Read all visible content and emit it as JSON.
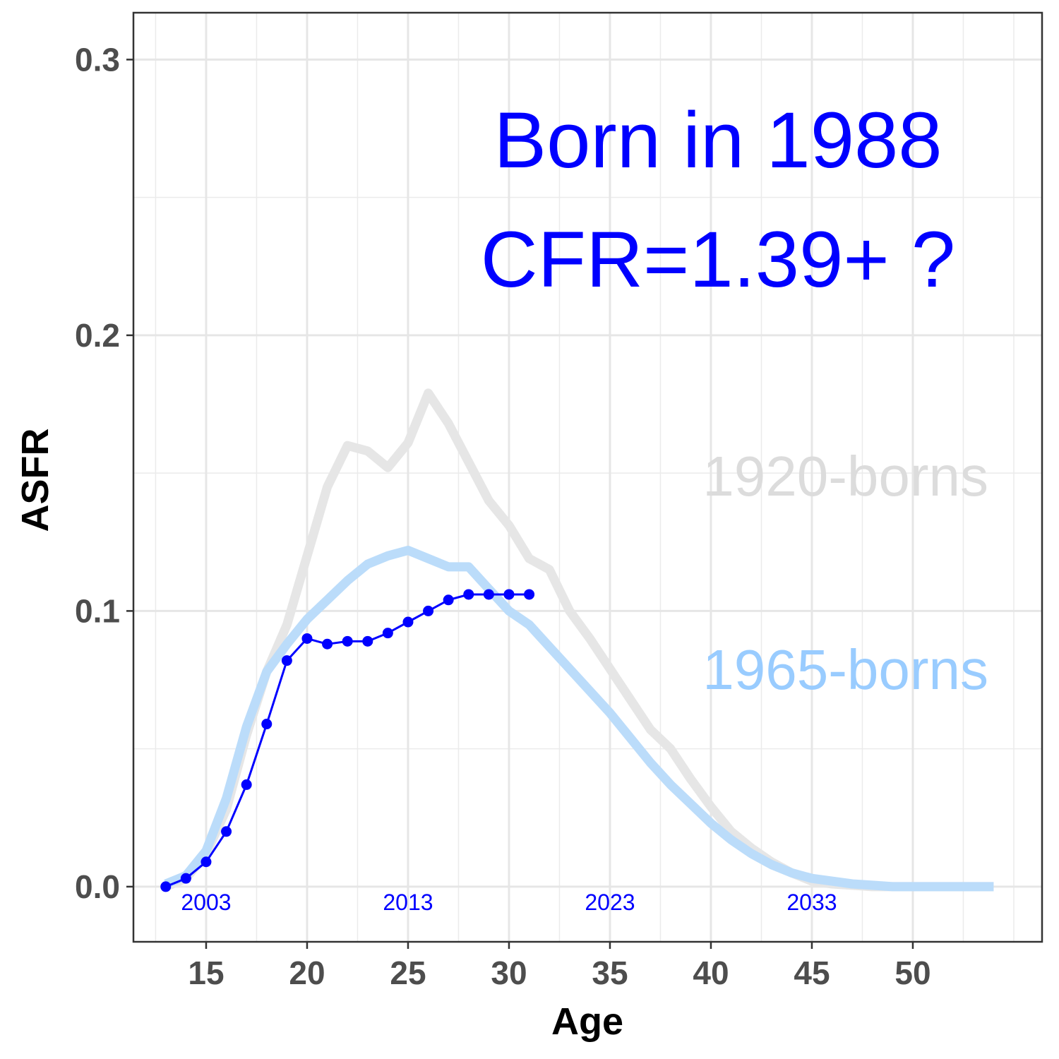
{
  "chart_data": {
    "type": "line",
    "title": "",
    "xlabel": "Age",
    "ylabel": "ASFR",
    "xlim": [
      11.4,
      56.4
    ],
    "ylim": [
      -0.02,
      0.317
    ],
    "x_ticks": [
      15,
      20,
      25,
      30,
      35,
      40,
      45,
      50
    ],
    "x_tick_labels": [
      "15",
      "20",
      "25",
      "30",
      "35",
      "40",
      "45",
      "50"
    ],
    "y_ticks": [
      0.0,
      0.1,
      0.2,
      0.3
    ],
    "y_tick_labels": [
      "0.0",
      "0.1",
      "0.2",
      "0.3"
    ],
    "grid": true,
    "series": [
      {
        "name": "1920-borns",
        "color": "#e6e6e6",
        "style": "thick-line",
        "x": [
          13,
          14,
          15,
          16,
          17,
          18,
          19,
          20,
          21,
          22,
          23,
          24,
          25,
          26,
          27,
          28,
          29,
          30,
          31,
          32,
          33,
          34,
          35,
          36,
          37,
          38,
          39,
          40,
          41,
          42,
          43,
          44,
          45,
          46,
          47,
          48,
          49,
          50,
          51,
          52,
          53,
          54
        ],
        "y": [
          0.0,
          0.003,
          0.012,
          0.028,
          0.055,
          0.078,
          0.095,
          0.12,
          0.145,
          0.16,
          0.158,
          0.152,
          0.161,
          0.179,
          0.168,
          0.154,
          0.14,
          0.131,
          0.119,
          0.115,
          0.1,
          0.09,
          0.079,
          0.068,
          0.057,
          0.05,
          0.039,
          0.029,
          0.02,
          0.014,
          0.009,
          0.005,
          0.002,
          0.001,
          0.0005,
          0.0,
          0.0,
          0.0,
          0.0,
          0.0,
          0.0,
          0.0
        ]
      },
      {
        "name": "1965-borns",
        "color": "#bbdcfa",
        "style": "thick-line",
        "x": [
          13,
          14,
          15,
          16,
          17,
          18,
          19,
          20,
          21,
          22,
          23,
          24,
          25,
          26,
          27,
          28,
          29,
          30,
          31,
          32,
          33,
          34,
          35,
          36,
          37,
          38,
          39,
          40,
          41,
          42,
          43,
          44,
          45,
          46,
          47,
          48,
          49,
          50,
          51,
          52,
          53,
          54
        ],
        "y": [
          0.001,
          0.004,
          0.013,
          0.032,
          0.058,
          0.078,
          0.088,
          0.097,
          0.104,
          0.111,
          0.117,
          0.12,
          0.122,
          0.119,
          0.116,
          0.116,
          0.108,
          0.1,
          0.095,
          0.087,
          0.079,
          0.071,
          0.063,
          0.054,
          0.045,
          0.037,
          0.03,
          0.023,
          0.017,
          0.012,
          0.008,
          0.005,
          0.003,
          0.002,
          0.001,
          0.0005,
          0.0,
          0.0,
          0.0,
          0.0,
          0.0,
          0.0
        ]
      },
      {
        "name": "Born in 1988",
        "color": "#0000ff",
        "style": "line-points",
        "x": [
          13,
          14,
          15,
          16,
          17,
          18,
          19,
          20,
          21,
          22,
          23,
          24,
          25,
          26,
          27,
          28,
          29,
          30,
          31
        ],
        "y": [
          0.0,
          0.003,
          0.009,
          0.02,
          0.037,
          0.059,
          0.082,
          0.09,
          0.088,
          0.089,
          0.089,
          0.092,
          0.096,
          0.1,
          0.104,
          0.106,
          0.106,
          0.106,
          0.106
        ]
      }
    ],
    "annotations": {
      "headline_line1": "Born in 1988",
      "headline_line2": "CFR=1.39+ ?",
      "label_1920": "1920-borns",
      "label_1965": "1965-borns",
      "label_1920_color": "#dcdcdc",
      "label_1965_color": "#99ccff",
      "headline_color": "#0000ff"
    },
    "year_labels": [
      {
        "age": 15,
        "text": "2003"
      },
      {
        "age": 25,
        "text": "2013"
      },
      {
        "age": 35,
        "text": "2023"
      },
      {
        "age": 45,
        "text": "2033"
      }
    ]
  }
}
